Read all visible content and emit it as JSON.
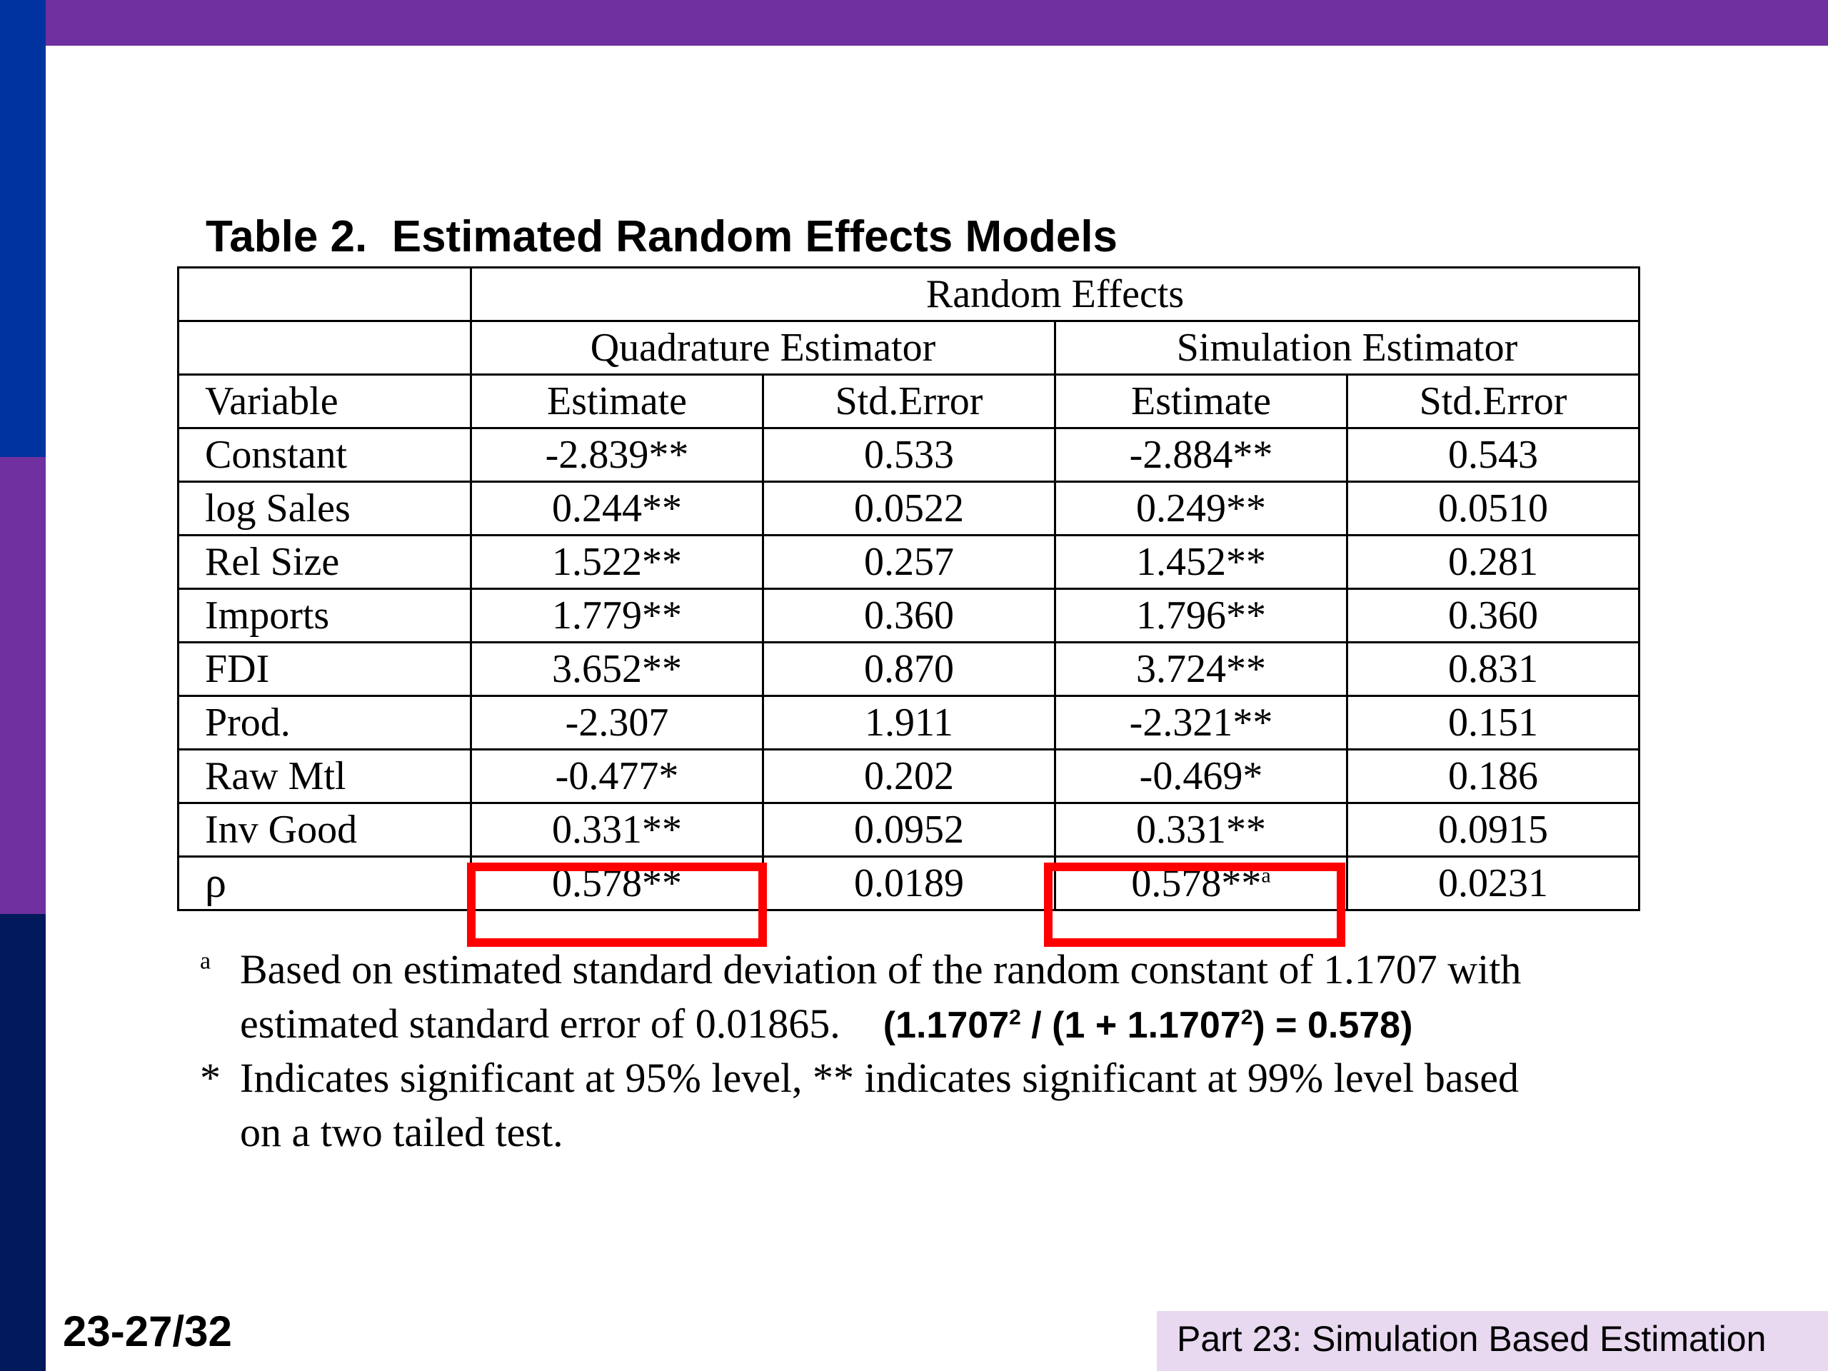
{
  "slide": {
    "table_title": "Table 2.  Estimated Random Effects Models",
    "slide_number": "23-27/32",
    "footer": "Part 23: Simulation Based Estimation",
    "colors": {
      "band": "#7030a0",
      "stripe_blue": "#0033a0",
      "stripe_dark": "#001a5c",
      "highlight": "#ff0000",
      "footer_bg": "#e8d9f1"
    }
  },
  "table": {
    "super_header": "Random Effects",
    "group_headers": [
      "Quadrature Estimator",
      "Simulation Estimator"
    ],
    "column_headers": [
      "Variable",
      "Estimate",
      "Std.Error",
      "Estimate",
      "Std.Error"
    ],
    "rows": [
      {
        "variable": "Constant",
        "q_est": "-2.839**",
        "q_se": "0.533",
        "s_est": "-2.884**",
        "s_se": "0.543"
      },
      {
        "variable": "log Sales",
        "q_est": "0.244**",
        "q_se": "0.0522",
        "s_est": "0.249**",
        "s_se": "0.0510"
      },
      {
        "variable": "Rel Size",
        "q_est": "1.522**",
        "q_se": "0.257",
        "s_est": "1.452**",
        "s_se": "0.281"
      },
      {
        "variable": "Imports",
        "q_est": "1.779**",
        "q_se": "0.360",
        "s_est": "1.796**",
        "s_se": "0.360"
      },
      {
        "variable": "FDI",
        "q_est": "3.652**",
        "q_se": "0.870",
        "s_est": "3.724**",
        "s_se": "0.831"
      },
      {
        "variable": "Prod.",
        "q_est": "-2.307",
        "q_se": "1.911",
        "s_est": "-2.321**",
        "s_se": "0.151"
      },
      {
        "variable": "Raw Mtl",
        "q_est": "-0.477*",
        "q_se": "0.202",
        "s_est": "-0.469*",
        "s_se": "0.186"
      },
      {
        "variable": "Inv Good",
        "q_est": "0.331**",
        "q_se": "0.0952",
        "s_est": "0.331**",
        "s_se": "0.0915"
      }
    ],
    "rho_row": {
      "variable": "ρ",
      "q_est": "0.578**",
      "q_se": "0.0189",
      "s_est": "0.578**",
      "s_est_sup": "a",
      "s_se": "0.0231"
    }
  },
  "notes": {
    "a_marker": "a",
    "a_line1": "Based on estimated standard deviation of the random constant of 1.1707 with",
    "a_line2": "estimated standard error of 0.01865.",
    "formula": {
      "p1": "(1.1707",
      "sup1": "2",
      "p2": " / (1 + 1.1707",
      "sup2": "2",
      "p3": ") = 0.578)"
    },
    "star_marker": "*",
    "star_line1": "Indicates significant at 95% level, ** indicates significant at 99% level based",
    "star_line2": "on a two tailed test."
  }
}
